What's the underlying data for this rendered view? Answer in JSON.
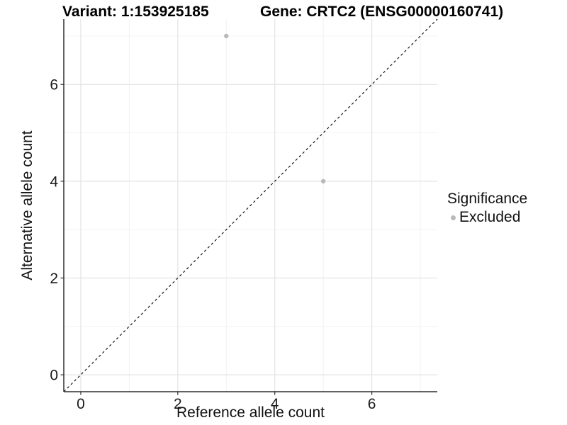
{
  "header": {
    "left_title": "Variant: 1:153925185",
    "right_title": "Gene: CRTC2 (ENSG00000160741)"
  },
  "chart_data": {
    "type": "scatter",
    "xlabel": "Reference allele count",
    "ylabel": "Alternative allele count",
    "xlim": [
      -0.35,
      7.35
    ],
    "ylim": [
      -0.35,
      7.35
    ],
    "x_major_ticks": [
      0,
      2,
      4,
      6
    ],
    "y_major_ticks": [
      0,
      2,
      4,
      6
    ],
    "x_minor_ticks": [
      1,
      3,
      5,
      7
    ],
    "y_minor_ticks": [
      1,
      3,
      5,
      7
    ],
    "grid": true,
    "reference_line": {
      "type": "identity",
      "style": "dashed",
      "color": "#000000",
      "from": [
        -0.35,
        -0.35
      ],
      "to": [
        7.35,
        7.35
      ]
    },
    "series": [
      {
        "name": "Excluded",
        "color": "#b9b9b9",
        "points": [
          {
            "x": 3,
            "y": 7
          },
          {
            "x": 5,
            "y": 4
          }
        ]
      }
    ],
    "legend": {
      "title": "Significance",
      "position": "right",
      "items": [
        {
          "label": "Excluded",
          "color": "#b9b9b9"
        }
      ]
    }
  },
  "style_colors": {
    "grid_major": "#e3e3e3",
    "grid_minor": "#f0f0f0",
    "axis_line": "#2e2e2e",
    "tick_label": "#1a1a1a"
  }
}
